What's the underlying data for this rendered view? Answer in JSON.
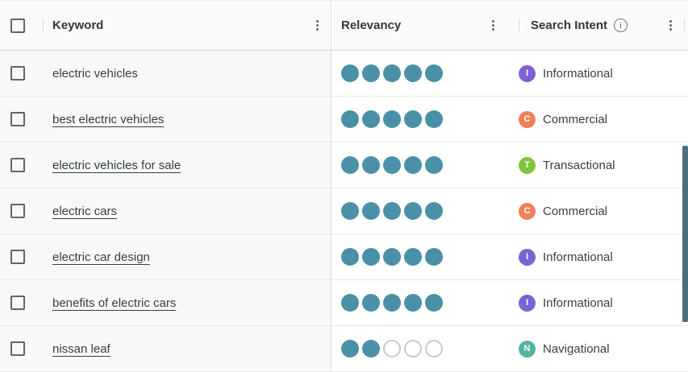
{
  "table": {
    "columns": {
      "keyword": "Keyword",
      "relevancy": "Relevancy",
      "search_intent": "Search Intent"
    },
    "info_icon_glyph": "i",
    "relevancy_max": 5,
    "rows": [
      {
        "keyword": "electric vehicles",
        "is_link": false,
        "relevancy": 5,
        "intent": {
          "label": "Informational",
          "letter": "I",
          "color": "#7c62d2"
        }
      },
      {
        "keyword": "best electric vehicles",
        "is_link": true,
        "relevancy": 5,
        "intent": {
          "label": "Commercial",
          "letter": "C",
          "color": "#ef8159"
        }
      },
      {
        "keyword": "electric vehicles for sale",
        "is_link": true,
        "relevancy": 5,
        "intent": {
          "label": "Transactional",
          "letter": "T",
          "color": "#83c43f"
        }
      },
      {
        "keyword": "electric cars",
        "is_link": true,
        "relevancy": 5,
        "intent": {
          "label": "Commercial",
          "letter": "C",
          "color": "#ef8159"
        }
      },
      {
        "keyword": "electric car design",
        "is_link": true,
        "relevancy": 5,
        "intent": {
          "label": "Informational",
          "letter": "I",
          "color": "#7c62d2"
        }
      },
      {
        "keyword": "benefits of electric cars",
        "is_link": true,
        "relevancy": 5,
        "intent": {
          "label": "Informational",
          "letter": "I",
          "color": "#7c62d2"
        }
      },
      {
        "keyword": "nissan leaf",
        "is_link": true,
        "relevancy": 2,
        "intent": {
          "label": "Navigational",
          "letter": "N",
          "color": "#52b4a2"
        }
      }
    ]
  },
  "colors": {
    "relevancy_filled": "#4a90a7",
    "relevancy_empty_border": "#c9c9c9",
    "scrollbar": "#4b6e7a"
  }
}
